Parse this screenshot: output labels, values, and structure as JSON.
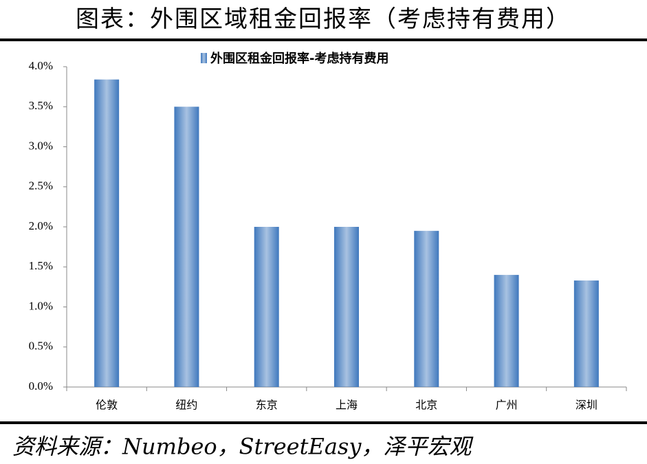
{
  "header": {
    "title": "图表：外围区域租金回报率（考虑持有费用）"
  },
  "chart_data": {
    "type": "bar",
    "categories": [
      "伦敦",
      "纽约",
      "东京",
      "上海",
      "北京",
      "广州",
      "深圳"
    ],
    "series": [
      {
        "name": "外围区租金回报率-考虑持有费用",
        "color": "#3f78bd",
        "values": [
          3.84,
          3.5,
          2.0,
          2.0,
          1.95,
          1.4,
          1.33
        ]
      }
    ],
    "ylim": [
      0,
      4
    ],
    "yticks": [
      {
        "value": 0,
        "label": "0.0%"
      },
      {
        "value": 0.5,
        "label": "0.5%"
      },
      {
        "value": 1,
        "label": "1.0%"
      },
      {
        "value": 1.5,
        "label": "1.5%"
      },
      {
        "value": 2,
        "label": "2.0%"
      },
      {
        "value": 2.5,
        "label": "2.5%"
      },
      {
        "value": 3,
        "label": "3.0%"
      },
      {
        "value": 3.5,
        "label": "3.5%"
      },
      {
        "value": 4,
        "label": "4.0%"
      }
    ],
    "legend": "top"
  },
  "footer": {
    "source": "资料来源：Numbeo，StreetEasy，泽平宏观"
  }
}
